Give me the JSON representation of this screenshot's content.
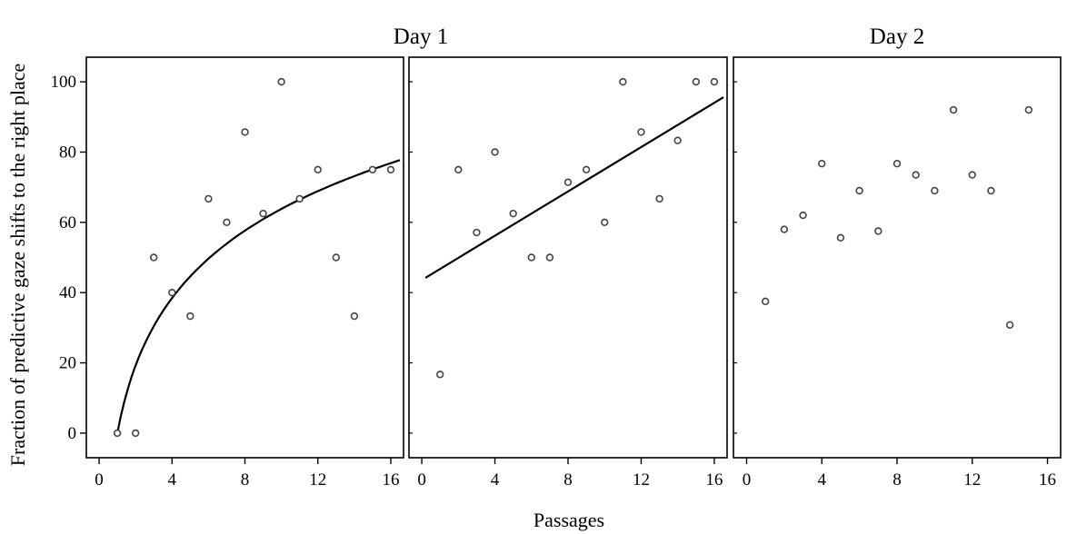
{
  "chart_data": {
    "type": "scatter",
    "ylabel": "Fraction of predictive gaze shifts to the right place",
    "xlabel": "Passages",
    "ylim": [
      -7,
      107
    ],
    "y_ticks": [
      0,
      20,
      40,
      60,
      80,
      100
    ],
    "x_ticks": [
      0,
      4,
      8,
      12,
      16
    ],
    "panels": [
      {
        "title": "Day 1",
        "xlim": [
          -0.7,
          16.7
        ],
        "fit": "logarithmic",
        "fit_points": [
          [
            1,
            0
          ],
          [
            1.5,
            17.3
          ],
          [
            2,
            29.4
          ],
          [
            3,
            42.8
          ],
          [
            4,
            50.9
          ],
          [
            6,
            59.6
          ],
          [
            8,
            64.9
          ],
          [
            10,
            68.8
          ],
          [
            12,
            71.8
          ],
          [
            14,
            74.9
          ],
          [
            16.5,
            77.7
          ]
        ],
        "points": [
          {
            "x": 1,
            "y": 0
          },
          {
            "x": 2,
            "y": 0
          },
          {
            "x": 3,
            "y": 50
          },
          {
            "x": 4,
            "y": 40
          },
          {
            "x": 5,
            "y": 33.3
          },
          {
            "x": 6,
            "y": 66.7
          },
          {
            "x": 7,
            "y": 60
          },
          {
            "x": 8,
            "y": 85.7
          },
          {
            "x": 9,
            "y": 62.5
          },
          {
            "x": 10,
            "y": 100
          },
          {
            "x": 11,
            "y": 66.7
          },
          {
            "x": 12,
            "y": 75
          },
          {
            "x": 13,
            "y": 50
          },
          {
            "x": 14,
            "y": 33.3
          },
          {
            "x": 15,
            "y": 75
          },
          {
            "x": 16,
            "y": 75
          }
        ]
      },
      {
        "title": "",
        "xlim": [
          -0.7,
          16.7
        ],
        "fit": "linear",
        "fit_points": [
          [
            0.2,
            44.2
          ],
          [
            16.5,
            95.6
          ]
        ],
        "points": [
          {
            "x": 1,
            "y": 16.7
          },
          {
            "x": 2,
            "y": 75
          },
          {
            "x": 3,
            "y": 57.1
          },
          {
            "x": 4,
            "y": 80
          },
          {
            "x": 5,
            "y": 62.5
          },
          {
            "x": 6,
            "y": 50
          },
          {
            "x": 7,
            "y": 50
          },
          {
            "x": 8,
            "y": 71.4
          },
          {
            "x": 9,
            "y": 75
          },
          {
            "x": 10,
            "y": 60
          },
          {
            "x": 11,
            "y": 100
          },
          {
            "x": 12,
            "y": 85.7
          },
          {
            "x": 13,
            "y": 66.7
          },
          {
            "x": 14,
            "y": 83.3
          },
          {
            "x": 15,
            "y": 100
          },
          {
            "x": 16,
            "y": 100
          }
        ]
      },
      {
        "title": "Day 2",
        "xlim": [
          -0.7,
          16.7
        ],
        "fit": "none",
        "fit_points": [],
        "points": [
          {
            "x": 1,
            "y": 37.5
          },
          {
            "x": 2,
            "y": 58
          },
          {
            "x": 3,
            "y": 62
          },
          {
            "x": 4,
            "y": 76.7
          },
          {
            "x": 5,
            "y": 55.6
          },
          {
            "x": 6,
            "y": 69
          },
          {
            "x": 7,
            "y": 57.5
          },
          {
            "x": 8,
            "y": 76.7
          },
          {
            "x": 9,
            "y": 73.5
          },
          {
            "x": 10,
            "y": 69
          },
          {
            "x": 11,
            "y": 92
          },
          {
            "x": 12,
            "y": 73.5
          },
          {
            "x": 13,
            "y": 69
          },
          {
            "x": 14,
            "y": 30.8
          },
          {
            "x": 15,
            "y": 92
          }
        ]
      }
    ],
    "grid": false,
    "legend": "none"
  }
}
